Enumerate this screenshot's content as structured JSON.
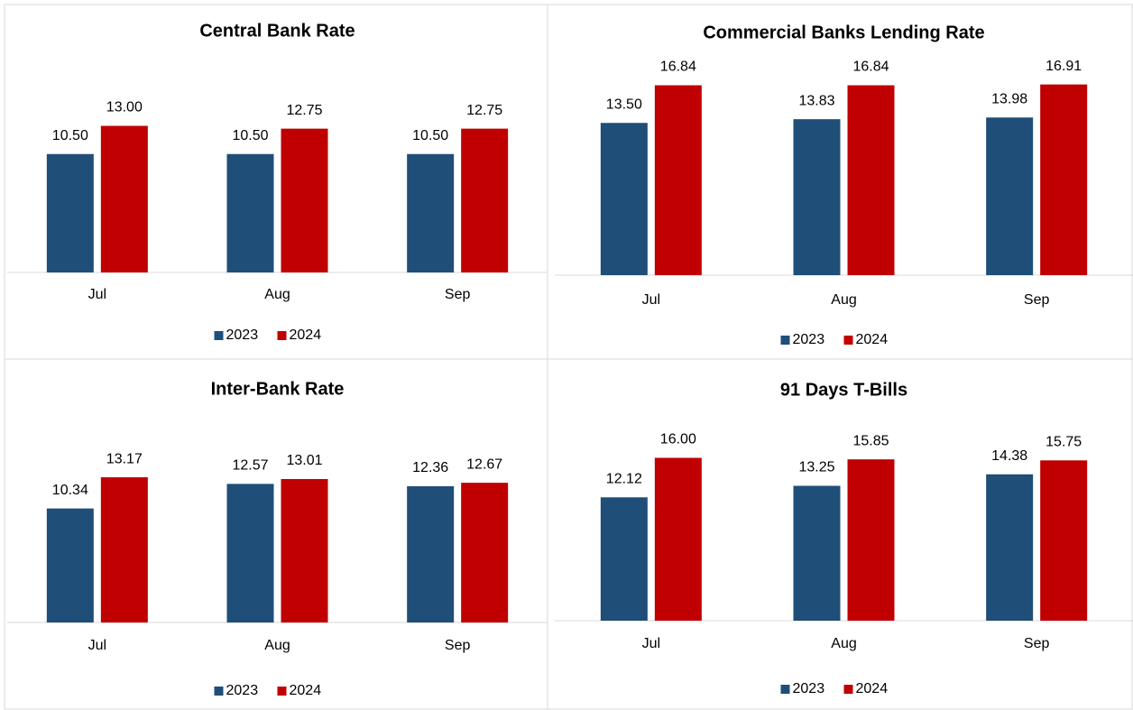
{
  "chart_data": [
    {
      "type": "bar",
      "title": "Central Bank Rate",
      "categories": [
        "Jul",
        "Aug",
        "Sep"
      ],
      "ylim": [
        0,
        18
      ],
      "series": [
        {
          "name": "2023",
          "color": "#1f4e79",
          "values": [
            10.5,
            10.5,
            10.5
          ],
          "value_labels": [
            "10.50",
            "10.50",
            "10.50"
          ]
        },
        {
          "name": "2024",
          "color": "#c00000",
          "values": [
            13,
            12.75,
            12.75
          ],
          "value_labels": [
            "13.00",
            "12.75",
            "12.75"
          ]
        }
      ]
    },
    {
      "type": "bar",
      "title": "Commercial Banks Lending Rate",
      "categories": [
        "Jul",
        "Aug",
        "Sep"
      ],
      "ylim": [
        0,
        18
      ],
      "series": [
        {
          "name": "2023",
          "color": "#1f4e79",
          "values": [
            13.5,
            13.83,
            13.98
          ],
          "value_labels": [
            "13.50",
            "13.83",
            "13.98"
          ]
        },
        {
          "name": "2024",
          "color": "#c00000",
          "values": [
            16.84,
            16.84,
            16.91
          ],
          "value_labels": [
            "16.84",
            "16.84",
            "16.91"
          ]
        }
      ]
    },
    {
      "type": "bar",
      "title": "Inter-Bank Rate",
      "categories": [
        "Jul",
        "Aug",
        "Sep"
      ],
      "ylim": [
        0,
        18
      ],
      "series": [
        {
          "name": "2023",
          "color": "#1f4e79",
          "values": [
            10.34,
            12.57,
            12.36
          ],
          "value_labels": [
            "10.34",
            "12.57",
            "12.36"
          ]
        },
        {
          "name": "2024",
          "color": "#c00000",
          "values": [
            13.17,
            13.01,
            12.67
          ],
          "value_labels": [
            "13.17",
            "13.01",
            "12.67"
          ]
        }
      ]
    },
    {
      "type": "bar",
      "title": "91 Days T-Bills",
      "categories": [
        "Jul",
        "Aug",
        "Sep"
      ],
      "ylim": [
        0,
        19.5
      ],
      "series": [
        {
          "name": "2023",
          "color": "#1f4e79",
          "values": [
            12.12,
            13.25,
            14.38
          ],
          "value_labels": [
            "12.12",
            "13.25",
            "14.38"
          ]
        },
        {
          "name": "2024",
          "color": "#c00000",
          "values": [
            16,
            15.85,
            15.75
          ],
          "value_labels": [
            "16.00",
            "15.85",
            "15.75"
          ]
        }
      ]
    }
  ]
}
